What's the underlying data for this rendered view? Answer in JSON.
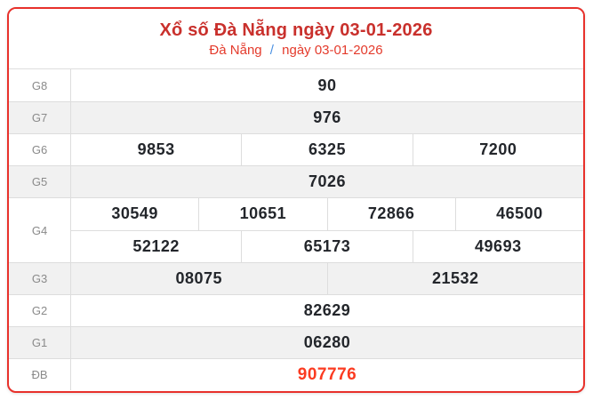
{
  "header": {
    "title": "Xổ số Đà Nẵng ngày 03-01-2026",
    "breadcrumb": {
      "province": "Đà Nẵng",
      "separator": "/",
      "date": "ngày 03-01-2026"
    }
  },
  "table": {
    "rows": [
      {
        "label": "G8",
        "cells": [
          "90"
        ]
      },
      {
        "label": "G7",
        "cells": [
          "976"
        ]
      },
      {
        "label": "G6",
        "cells": [
          "9853",
          "6325",
          "7200"
        ]
      },
      {
        "label": "G5",
        "cells": [
          "7026"
        ]
      },
      {
        "label": "G4",
        "cells_row1": [
          "30549",
          "10651",
          "72866",
          "46500"
        ],
        "cells_row2": [
          "52122",
          "65173",
          "49693"
        ]
      },
      {
        "label": "G3",
        "cells": [
          "08075",
          "21532"
        ]
      },
      {
        "label": "G2",
        "cells": [
          "82629"
        ]
      },
      {
        "label": "G1",
        "cells": [
          "06280"
        ]
      },
      {
        "label": "ĐB",
        "cells": [
          "907776"
        ]
      }
    ]
  },
  "colors": {
    "card_border": "#e8312b",
    "title_red": "#c9302c",
    "link_red": "#e43b2c",
    "separator_blue": "#4a90e2",
    "value_dark": "#23262b",
    "special_value_red": "#fb3b21",
    "row_gray": "#f1f1f1",
    "divider_gray": "#dddddd",
    "label_gray": "#8a8a8a"
  }
}
